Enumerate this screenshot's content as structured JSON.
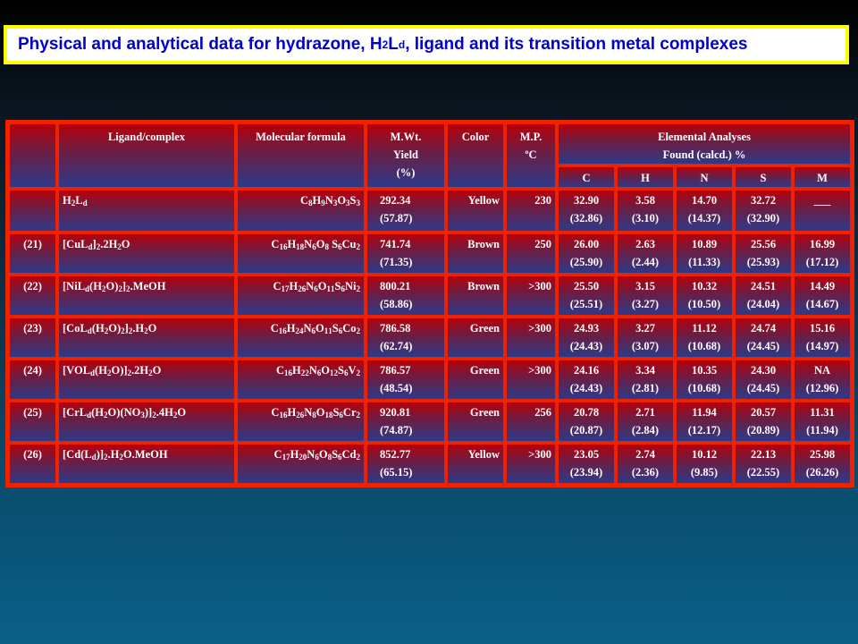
{
  "title": {
    "pre": "Physical and analytical data for hydrazone, H",
    "sub1": "2",
    "mid": "L",
    "sub2": "d",
    "post": ", ligand and its transition metal complexes"
  },
  "headers": {
    "ligand": "Ligand/complex",
    "formula": "Molecular formula",
    "mwt_line1": "M.Wt.",
    "mwt_line2": "Yield",
    "mwt_line3": "(%)",
    "color": "Color",
    "mp_line1": "M.P.",
    "mp_line2": "ºC",
    "ea_line1": "Elemental Analyses",
    "ea_line2": "Found (calcd.)  %",
    "c": "C",
    "h": "H",
    "n": "N",
    "s": "S",
    "m": "M"
  },
  "rows": [
    {
      "no": "",
      "complex": "H2Ld",
      "formula": "C8H9N3O3S3",
      "mwt": "292.34",
      "yield": "(57.87)",
      "color": "Yellow",
      "mp": "230",
      "c_found": "32.90",
      "c_calc": "(32.86)",
      "h_found": "3.58",
      "h_calc": "(3.10)",
      "n_found": "14.70",
      "n_calc": "(14.37)",
      "s_found": "32.72",
      "s_calc": "(32.90)",
      "m_found": "___",
      "m_calc": ""
    },
    {
      "no": "(21)",
      "complex": "[CuLd]2.2H2O",
      "formula": "C16H18N6O8 S6Cu2",
      "mwt": "741.74",
      "yield": "(71.35)",
      "color": "Brown",
      "mp": "250",
      "c_found": "26.00",
      "c_calc": "(25.90)",
      "h_found": "2.63",
      "h_calc": "(2.44)",
      "n_found": "10.89",
      "n_calc": "(11.33)",
      "s_found": "25.56",
      "s_calc": "(25.93)",
      "m_found": "16.99",
      "m_calc": "(17.12)"
    },
    {
      "no": "(22)",
      "complex": "[NiLd(H2O)2]2.MeOH",
      "formula": "C17H26N6O11S6Ni2",
      "mwt": "800.21",
      "yield": "(58.86)",
      "color": "Brown",
      "mp": ">300",
      "c_found": "25.50",
      "c_calc": "(25.51)",
      "h_found": "3.15",
      "h_calc": "(3.27)",
      "n_found": "10.32",
      "n_calc": "(10.50)",
      "s_found": "24.51",
      "s_calc": "(24.04)",
      "m_found": "14.49",
      "m_calc": "(14.67)"
    },
    {
      "no": "(23)",
      "complex": "[CoLd(H2O)2]2.H2O",
      "formula": "C16H24N6O11S6Co2",
      "mwt": "786.58",
      "yield": "(62.74)",
      "color": "Green",
      "mp": ">300",
      "c_found": "24.93",
      "c_calc": "(24.43)",
      "h_found": "3.27",
      "h_calc": "(3.07)",
      "n_found": "11.12",
      "n_calc": "(10.68)",
      "s_found": "24.74",
      "s_calc": "(24.45)",
      "m_found": "15.16",
      "m_calc": "(14.97)"
    },
    {
      "no": "(24)",
      "complex": "[VOLd(H2O)]2.2H2O",
      "formula": "C16H22N6O12S6V2",
      "mwt": "786.57",
      "yield": "(48.54)",
      "color": "Green",
      "mp": ">300",
      "c_found": "24.16",
      "c_calc": "(24.43)",
      "h_found": "3.34",
      "h_calc": "(2.81)",
      "n_found": "10.35",
      "n_calc": "(10.68)",
      "s_found": "24.30",
      "s_calc": "(24.45)",
      "m_found": "NA",
      "m_calc": "(12.96)"
    },
    {
      "no": "(25)",
      "complex": "[CrLd(H2O)(NO3)]2.4H2O",
      "formula": "C16H26N8O18S6Cr2",
      "mwt": "920.81",
      "yield": "(74.87)",
      "color": "Green",
      "mp": "256",
      "c_found": "20.78",
      "c_calc": "(20.87)",
      "h_found": "2.71",
      "h_calc": "(2.84)",
      "n_found": "11.94",
      "n_calc": "(12.17)",
      "s_found": "20.57",
      "s_calc": "(20.89)",
      "m_found": "11.31",
      "m_calc": "(11.94)"
    },
    {
      "no": "(26)",
      "complex": "[Cd(Ld)]2.H2O.MeOH",
      "formula": "C17H20N6O8S6Cd2",
      "mwt": "852.77",
      "yield": "(65.15)",
      "color": "Yellow",
      "mp": ">300",
      "c_found": "23.05",
      "c_calc": "(23.94)",
      "h_found": "2.74",
      "h_calc": "(2.36)",
      "n_found": "10.12",
      "n_calc": "(9.85)",
      "s_found": "22.13",
      "s_calc": "(22.55)",
      "m_found": "25.98",
      "m_calc": "(26.26)"
    }
  ],
  "colors": {
    "title_border": "#ffff00",
    "title_text": "#0000cc",
    "grid": "#ee2200",
    "cell_top": "#b5000b",
    "cell_bottom": "#2c3a8a"
  }
}
